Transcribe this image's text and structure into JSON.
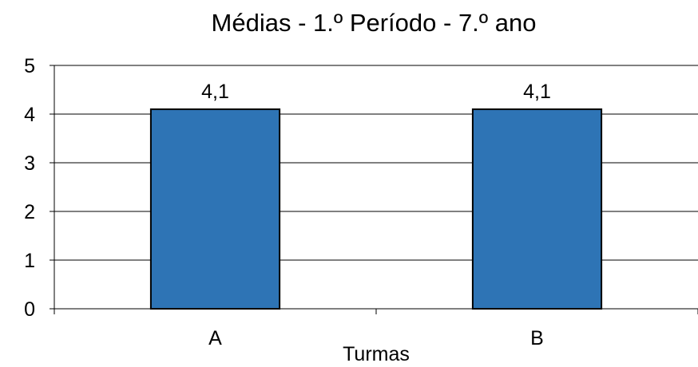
{
  "chart_data": {
    "type": "bar",
    "title": "Médias - 1.º Período - 7.º ano",
    "xlabel": "Turmas",
    "ylabel": "",
    "categories": [
      "A",
      "B"
    ],
    "values": [
      4.1,
      4.1
    ],
    "data_labels": [
      "4,1",
      "4,1"
    ],
    "y_ticks": [
      "0",
      "1",
      "2",
      "3",
      "4",
      "5"
    ],
    "ylim": [
      0,
      5
    ],
    "grid": true,
    "legend": "none",
    "bar_color": "#2e74b5",
    "bar_edge_color": "#000000"
  }
}
